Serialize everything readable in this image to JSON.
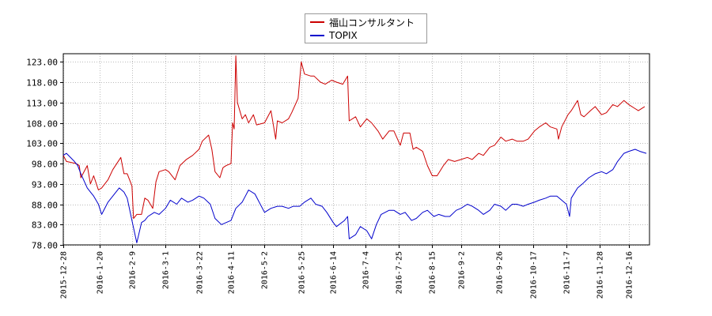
{
  "chart_data": {
    "type": "line",
    "title": "",
    "xlabel": "",
    "ylabel": "",
    "ylim": [
      78.0,
      125.0
    ],
    "xlim": [
      "2015-12-28",
      "2016-12-29"
    ],
    "grid": true,
    "legend_position": "top-center",
    "y_ticks": [
      "78.00",
      "83.00",
      "88.00",
      "93.00",
      "98.00",
      "103.00",
      "108.00",
      "113.00",
      "118.00",
      "123.00"
    ],
    "x_ticks": [
      "2015-12-28",
      "2016-1-20",
      "2016-2-9",
      "2016-3-1",
      "2016-3-22",
      "2016-4-11",
      "2016-5-2",
      "2016-5-25",
      "2016-6-14",
      "2016-7-4",
      "2016-7-25",
      "2016-8-15",
      "2016-9-2",
      "2016-9-26",
      "2016-10-17",
      "2016-11-7",
      "2016-11-28",
      "2016-12-16"
    ],
    "series": [
      {
        "name": "福山コンサルタント",
        "color": "#cc0000",
        "points": [
          [
            "2015-12-28",
            100.0
          ],
          [
            "2015-12-30",
            98.5
          ],
          [
            "2016-1-5",
            98.0
          ],
          [
            "2016-1-7",
            97.5
          ],
          [
            "2016-1-8",
            94.5
          ],
          [
            "2016-1-12",
            97.5
          ],
          [
            "2016-1-14",
            93.0
          ],
          [
            "2016-1-16",
            95.0
          ],
          [
            "2016-1-19",
            91.5
          ],
          [
            "2016-1-21",
            92.0
          ],
          [
            "2016-1-25",
            94.0
          ],
          [
            "2016-1-28",
            96.5
          ],
          [
            "2016-2-2",
            99.5
          ],
          [
            "2016-2-4",
            95.5
          ],
          [
            "2016-2-6",
            95.5
          ],
          [
            "2016-2-9",
            92.5
          ],
          [
            "2016-2-10",
            84.5
          ],
          [
            "2016-2-12",
            85.5
          ],
          [
            "2016-2-15",
            85.5
          ],
          [
            "2016-2-17",
            89.5
          ],
          [
            "2016-2-19",
            89.0
          ],
          [
            "2016-2-22",
            87.0
          ],
          [
            "2016-2-24",
            93.5
          ],
          [
            "2016-2-26",
            96.0
          ],
          [
            "2016-3-1",
            96.5
          ],
          [
            "2016-3-3",
            96.0
          ],
          [
            "2016-3-7",
            94.0
          ],
          [
            "2016-3-10",
            97.5
          ],
          [
            "2016-3-14",
            99.0
          ],
          [
            "2016-3-18",
            100.0
          ],
          [
            "2016-3-22",
            101.5
          ],
          [
            "2016-3-24",
            103.5
          ],
          [
            "2016-3-28",
            105.0
          ],
          [
            "2016-3-30",
            101.5
          ],
          [
            "2016-4-1",
            96.0
          ],
          [
            "2016-4-4",
            94.5
          ],
          [
            "2016-4-6",
            97.0
          ],
          [
            "2016-4-8",
            97.5
          ],
          [
            "2016-4-11",
            98.0
          ],
          [
            "2016-4-12",
            108.0
          ],
          [
            "2016-4-13",
            106.5
          ],
          [
            "2016-4-14",
            124.5
          ],
          [
            "2016-4-15",
            113.0
          ],
          [
            "2016-4-18",
            109.0
          ],
          [
            "2016-4-20",
            110.0
          ],
          [
            "2016-4-22",
            108.0
          ],
          [
            "2016-4-25",
            110.0
          ],
          [
            "2016-4-27",
            107.5
          ],
          [
            "2016-5-2",
            108.0
          ],
          [
            "2016-5-6",
            111.0
          ],
          [
            "2016-5-9",
            104.0
          ],
          [
            "2016-5-10",
            108.5
          ],
          [
            "2016-5-13",
            108.0
          ],
          [
            "2016-5-17",
            109.0
          ],
          [
            "2016-5-19",
            110.5
          ],
          [
            "2016-5-23",
            114.0
          ],
          [
            "2016-5-25",
            123.0
          ],
          [
            "2016-5-27",
            120.0
          ],
          [
            "2016-5-31",
            119.5
          ],
          [
            "2016-6-2",
            119.5
          ],
          [
            "2016-6-6",
            118.0
          ],
          [
            "2016-6-9",
            117.5
          ],
          [
            "2016-6-13",
            118.5
          ],
          [
            "2016-6-16",
            118.0
          ],
          [
            "2016-6-20",
            117.5
          ],
          [
            "2016-6-23",
            119.5
          ],
          [
            "2016-6-24",
            108.5
          ],
          [
            "2016-6-28",
            109.5
          ],
          [
            "2016-7-1",
            107.0
          ],
          [
            "2016-7-5",
            109.0
          ],
          [
            "2016-7-8",
            108.0
          ],
          [
            "2016-7-12",
            106.0
          ],
          [
            "2016-7-15",
            104.0
          ],
          [
            "2016-7-19",
            106.0
          ],
          [
            "2016-7-22",
            106.0
          ],
          [
            "2016-7-26",
            102.5
          ],
          [
            "2016-7-28",
            105.5
          ],
          [
            "2016-8-1",
            105.5
          ],
          [
            "2016-8-3",
            101.5
          ],
          [
            "2016-8-5",
            102.0
          ],
          [
            "2016-8-9",
            101.0
          ],
          [
            "2016-8-12",
            97.5
          ],
          [
            "2016-8-15",
            95.0
          ],
          [
            "2016-8-18",
            95.0
          ],
          [
            "2016-8-22",
            97.5
          ],
          [
            "2016-8-25",
            99.0
          ],
          [
            "2016-8-29",
            98.5
          ],
          [
            "2016-9-2",
            99.0
          ],
          [
            "2016-9-6",
            99.5
          ],
          [
            "2016-9-9",
            99.0
          ],
          [
            "2016-9-13",
            100.5
          ],
          [
            "2016-9-16",
            100.0
          ],
          [
            "2016-9-20",
            102.0
          ],
          [
            "2016-9-23",
            102.5
          ],
          [
            "2016-9-27",
            104.5
          ],
          [
            "2016-9-30",
            103.5
          ],
          [
            "2016-10-4",
            104.0
          ],
          [
            "2016-10-7",
            103.5
          ],
          [
            "2016-10-11",
            103.5
          ],
          [
            "2016-10-14",
            104.0
          ],
          [
            "2016-10-18",
            106.0
          ],
          [
            "2016-10-21",
            107.0
          ],
          [
            "2016-10-25",
            108.0
          ],
          [
            "2016-10-28",
            107.0
          ],
          [
            "2016-11-1",
            106.5
          ],
          [
            "2016-11-2",
            104.0
          ],
          [
            "2016-11-4",
            107.0
          ],
          [
            "2016-11-8",
            110.0
          ],
          [
            "2016-11-10",
            111.0
          ],
          [
            "2016-11-14",
            113.5
          ],
          [
            "2016-11-16",
            110.0
          ],
          [
            "2016-11-18",
            109.5
          ],
          [
            "2016-11-22",
            111.0
          ],
          [
            "2016-11-25",
            112.0
          ],
          [
            "2016-11-29",
            110.0
          ],
          [
            "2016-12-2",
            110.5
          ],
          [
            "2016-12-6",
            112.5
          ],
          [
            "2016-12-9",
            112.0
          ],
          [
            "2016-12-13",
            113.5
          ],
          [
            "2016-12-16",
            112.5
          ],
          [
            "2016-12-20",
            111.5
          ],
          [
            "2016-12-22",
            111.0
          ],
          [
            "2016-12-26",
            112.0
          ]
        ]
      },
      {
        "name": "TOPIX",
        "color": "#0000cc",
        "points": [
          [
            "2015-12-28",
            100.0
          ],
          [
            "2015-12-30",
            100.5
          ],
          [
            "2016-1-4",
            98.5
          ],
          [
            "2016-1-6",
            97.5
          ],
          [
            "2016-1-8",
            95.5
          ],
          [
            "2016-1-12",
            92.0
          ],
          [
            "2016-1-14",
            91.0
          ],
          [
            "2016-1-16",
            90.0
          ],
          [
            "2016-1-19",
            88.0
          ],
          [
            "2016-1-21",
            85.5
          ],
          [
            "2016-1-25",
            88.5
          ],
          [
            "2016-1-28",
            90.0
          ],
          [
            "2016-2-1",
            92.0
          ],
          [
            "2016-2-4",
            91.0
          ],
          [
            "2016-2-6",
            89.5
          ],
          [
            "2016-2-9",
            84.0
          ],
          [
            "2016-2-12",
            78.5
          ],
          [
            "2016-2-15",
            83.5
          ],
          [
            "2016-2-17",
            84.0
          ],
          [
            "2016-2-19",
            85.0
          ],
          [
            "2016-2-23",
            86.0
          ],
          [
            "2016-2-26",
            85.5
          ],
          [
            "2016-3-1",
            87.0
          ],
          [
            "2016-3-4",
            89.0
          ],
          [
            "2016-3-8",
            88.0
          ],
          [
            "2016-3-11",
            89.5
          ],
          [
            "2016-3-15",
            88.5
          ],
          [
            "2016-3-18",
            89.0
          ],
          [
            "2016-3-22",
            90.0
          ],
          [
            "2016-3-25",
            89.5
          ],
          [
            "2016-3-29",
            88.0
          ],
          [
            "2016-4-1",
            84.5
          ],
          [
            "2016-4-5",
            83.0
          ],
          [
            "2016-4-8",
            83.5
          ],
          [
            "2016-4-11",
            84.0
          ],
          [
            "2016-4-14",
            87.0
          ],
          [
            "2016-4-18",
            88.5
          ],
          [
            "2016-4-20",
            90.0
          ],
          [
            "2016-4-22",
            91.5
          ],
          [
            "2016-4-26",
            90.5
          ],
          [
            "2016-4-28",
            89.0
          ],
          [
            "2016-5-2",
            86.0
          ],
          [
            "2016-5-6",
            87.0
          ],
          [
            "2016-5-10",
            87.5
          ],
          [
            "2016-5-13",
            87.5
          ],
          [
            "2016-5-17",
            87.0
          ],
          [
            "2016-5-20",
            87.5
          ],
          [
            "2016-5-24",
            87.5
          ],
          [
            "2016-5-27",
            88.5
          ],
          [
            "2016-5-31",
            89.5
          ],
          [
            "2016-6-3",
            88.0
          ],
          [
            "2016-6-7",
            87.5
          ],
          [
            "2016-6-10",
            86.0
          ],
          [
            "2016-6-14",
            83.5
          ],
          [
            "2016-6-16",
            82.5
          ],
          [
            "2016-6-21",
            84.0
          ],
          [
            "2016-6-23",
            85.0
          ],
          [
            "2016-6-24",
            79.5
          ],
          [
            "2016-6-28",
            80.5
          ],
          [
            "2016-7-1",
            82.5
          ],
          [
            "2016-7-5",
            81.5
          ],
          [
            "2016-7-8",
            79.5
          ],
          [
            "2016-7-11",
            83.0
          ],
          [
            "2016-7-14",
            85.5
          ],
          [
            "2016-7-19",
            86.5
          ],
          [
            "2016-7-22",
            86.5
          ],
          [
            "2016-7-26",
            85.5
          ],
          [
            "2016-7-29",
            86.0
          ],
          [
            "2016-8-2",
            84.0
          ],
          [
            "2016-8-5",
            84.5
          ],
          [
            "2016-8-9",
            86.0
          ],
          [
            "2016-8-12",
            86.5
          ],
          [
            "2016-8-16",
            85.0
          ],
          [
            "2016-8-19",
            85.5
          ],
          [
            "2016-8-23",
            85.0
          ],
          [
            "2016-8-26",
            85.0
          ],
          [
            "2016-8-30",
            86.5
          ],
          [
            "2016-9-2",
            87.0
          ],
          [
            "2016-9-6",
            88.0
          ],
          [
            "2016-9-9",
            87.5
          ],
          [
            "2016-9-13",
            86.5
          ],
          [
            "2016-9-16",
            85.5
          ],
          [
            "2016-9-20",
            86.5
          ],
          [
            "2016-9-23",
            88.0
          ],
          [
            "2016-9-27",
            87.5
          ],
          [
            "2016-9-30",
            86.5
          ],
          [
            "2016-10-4",
            88.0
          ],
          [
            "2016-10-7",
            88.0
          ],
          [
            "2016-10-11",
            87.5
          ],
          [
            "2016-10-14",
            88.0
          ],
          [
            "2016-10-18",
            88.5
          ],
          [
            "2016-10-21",
            89.0
          ],
          [
            "2016-10-25",
            89.5
          ],
          [
            "2016-10-28",
            90.0
          ],
          [
            "2016-11-1",
            90.0
          ],
          [
            "2016-11-4",
            89.0
          ],
          [
            "2016-11-7",
            88.0
          ],
          [
            "2016-11-9",
            85.0
          ],
          [
            "2016-11-10",
            89.5
          ],
          [
            "2016-11-14",
            92.0
          ],
          [
            "2016-11-17",
            93.0
          ],
          [
            "2016-11-21",
            94.5
          ],
          [
            "2016-11-25",
            95.5
          ],
          [
            "2016-11-29",
            96.0
          ],
          [
            "2016-12-2",
            95.5
          ],
          [
            "2016-12-6",
            96.5
          ],
          [
            "2016-12-9",
            98.5
          ],
          [
            "2016-12-13",
            100.5
          ],
          [
            "2016-12-16",
            101.0
          ],
          [
            "2016-12-20",
            101.5
          ],
          [
            "2016-12-23",
            101.0
          ],
          [
            "2016-12-27",
            100.5
          ]
        ]
      }
    ]
  }
}
